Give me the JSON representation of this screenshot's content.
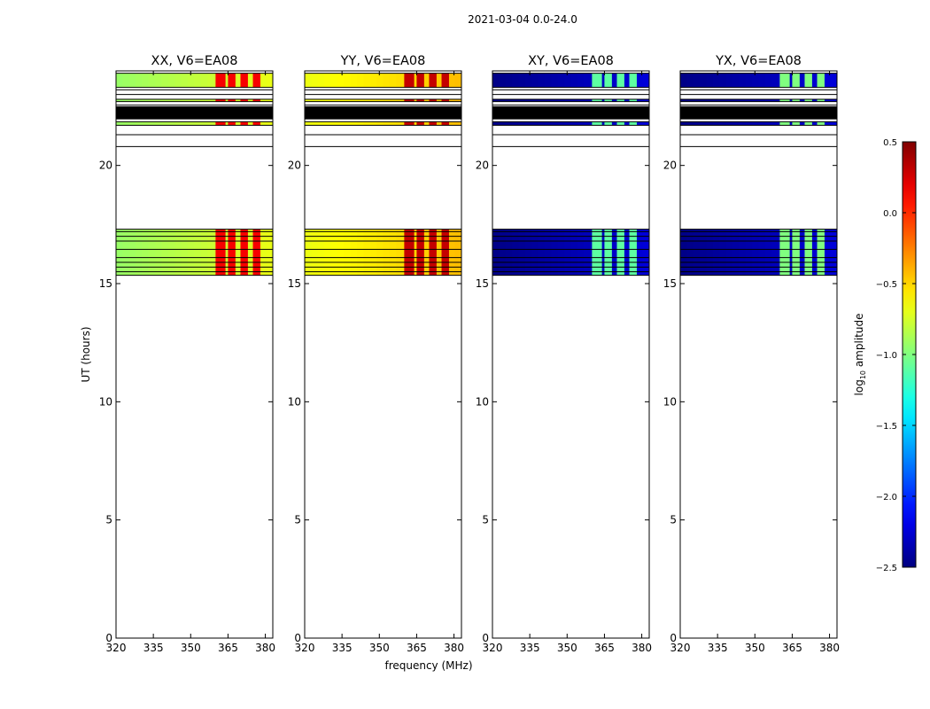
{
  "suptitle": "2021-03-04 0.0-24.0",
  "ylabel": "UT (hours)",
  "xlabel": "frequency (MHz)",
  "colorbar": {
    "label_main": "log",
    "label_sub": "10",
    "label_rest": " amplitude",
    "range": [
      -2.5,
      0.5
    ],
    "ticks": [
      -2.5,
      -2.0,
      -1.5,
      -1.0,
      -0.5,
      0.0,
      0.5
    ],
    "tick_labels": [
      "−2.5",
      "−2.0",
      "−1.5",
      "−1.0",
      "−0.5",
      "0.0",
      "0.5"
    ],
    "colormap": "jet"
  },
  "chart_data": {
    "type": "heatmap",
    "xlim": [
      320,
      383
    ],
    "ylim": [
      0,
      24
    ],
    "x_ticks": [
      320,
      335,
      350,
      365,
      380
    ],
    "y_ticks": [
      0,
      5,
      10,
      15,
      20
    ],
    "bright_columns_mhz": [
      [
        360,
        364
      ],
      [
        365,
        368
      ],
      [
        370,
        373
      ],
      [
        375,
        378
      ]
    ],
    "time_blocks": [
      {
        "t0": 23.3,
        "t1": 23.9
      },
      {
        "t0": 22.7,
        "t1": 22.8
      },
      {
        "t0": 21.95,
        "t1": 22.5,
        "masked": true
      },
      {
        "t0": 21.7,
        "t1": 21.85
      },
      {
        "t0": 15.35,
        "t1": 17.3
      }
    ],
    "panels": [
      {
        "title": "XX, V6=EA08",
        "base_level": -0.8,
        "column_level": 0.15
      },
      {
        "title": "YY, V6=EA08",
        "base_level": -0.55,
        "column_level": 0.3
      },
      {
        "title": "XY, V6=EA08",
        "base_level": -2.35,
        "column_level": -1.1
      },
      {
        "title": "YX, V6=EA08",
        "base_level": -2.35,
        "column_level": -1.0
      }
    ]
  }
}
